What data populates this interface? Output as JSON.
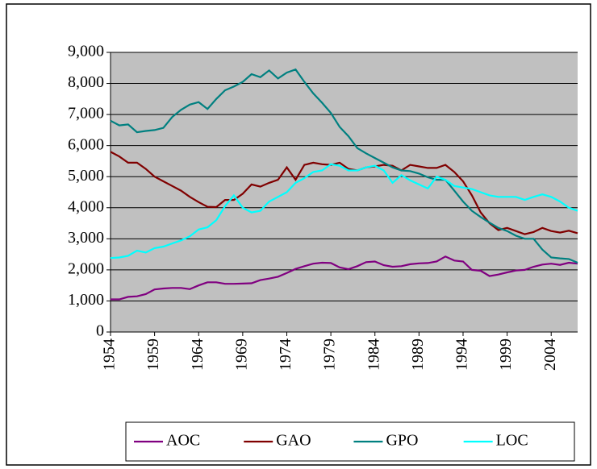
{
  "chart_data": {
    "type": "line",
    "categories": [
      "1954",
      null,
      null,
      null,
      null,
      "1959",
      null,
      null,
      null,
      null,
      "1964",
      null,
      null,
      null,
      null,
      "1969",
      null,
      null,
      null,
      null,
      "1974",
      null,
      null,
      null,
      null,
      "1979",
      null,
      null,
      null,
      null,
      "1984",
      null,
      null,
      null,
      null,
      "1989",
      null,
      null,
      null,
      null,
      "1994",
      null,
      null,
      null,
      null,
      "1999",
      null,
      null,
      null,
      null,
      "2004",
      null,
      null,
      null
    ],
    "series": [
      {
        "name": "AOC",
        "color": "#800080",
        "values": [
          1050,
          1050,
          1130,
          1150,
          1220,
          1370,
          1400,
          1420,
          1420,
          1380,
          1500,
          1600,
          1600,
          1550,
          1550,
          1560,
          1570,
          1670,
          1720,
          1780,
          1900,
          2030,
          2120,
          2200,
          2230,
          2220,
          2080,
          2020,
          2120,
          2250,
          2270,
          2150,
          2100,
          2120,
          2180,
          2210,
          2220,
          2270,
          2430,
          2300,
          2270,
          2000,
          1970,
          1800,
          1850,
          1920,
          1980,
          2000,
          2100,
          2170,
          2200,
          2160,
          2230,
          2200
        ]
      },
      {
        "name": "GAO",
        "color": "#800000",
        "values": [
          5800,
          5650,
          5450,
          5450,
          5250,
          5000,
          4850,
          4700,
          4550,
          4350,
          4180,
          4030,
          4020,
          4250,
          4250,
          4450,
          4750,
          4680,
          4800,
          4900,
          5300,
          4900,
          5380,
          5450,
          5400,
          5380,
          5450,
          5250,
          5200,
          5300,
          5330,
          5380,
          5350,
          5200,
          5380,
          5330,
          5280,
          5280,
          5380,
          5150,
          4850,
          4400,
          3850,
          3500,
          3280,
          3350,
          3250,
          3150,
          3220,
          3350,
          3250,
          3200,
          3260,
          3180
        ]
      },
      {
        "name": "GPO",
        "color": "#008080",
        "values": [
          6800,
          6650,
          6680,
          6430,
          6470,
          6500,
          6570,
          6920,
          7150,
          7320,
          7400,
          7180,
          7500,
          7780,
          7900,
          8050,
          8300,
          8200,
          8420,
          8160,
          8350,
          8450,
          8050,
          7680,
          7380,
          7050,
          6600,
          6300,
          5920,
          5750,
          5600,
          5450,
          5300,
          5200,
          5180,
          5100,
          4980,
          4900,
          4900,
          4550,
          4200,
          3900,
          3700,
          3520,
          3350,
          3250,
          3100,
          3000,
          3000,
          2650,
          2400,
          2370,
          2350,
          2230
        ]
      },
      {
        "name": "LOC",
        "color": "#00ffff",
        "values": [
          2380,
          2400,
          2450,
          2620,
          2560,
          2700,
          2750,
          2850,
          2950,
          3080,
          3300,
          3370,
          3600,
          4050,
          4400,
          4000,
          3850,
          3900,
          4200,
          4350,
          4500,
          4800,
          4950,
          5150,
          5200,
          5400,
          5350,
          5200,
          5200,
          5300,
          5350,
          5200,
          4800,
          5050,
          4880,
          4750,
          4620,
          5000,
          4900,
          4700,
          4650,
          4600,
          4500,
          4400,
          4350,
          4350,
          4350,
          4250,
          4350,
          4430,
          4350,
          4200,
          4000,
          3900
        ]
      }
    ],
    "ylim": [
      0,
      9000
    ],
    "yticks": [
      0,
      {
        "value": 1000,
        "label": "1,000"
      },
      {
        "value": 2000,
        "label": "2,000"
      },
      {
        "value": 3000,
        "label": "3,000"
      },
      {
        "value": 4000,
        "label": "4,000"
      },
      {
        "value": 5000,
        "label": "5,000"
      },
      {
        "value": 6000,
        "label": "6,000"
      },
      {
        "value": 7000,
        "label": "7,000"
      },
      {
        "value": 8000,
        "label": "8,000"
      },
      {
        "value": 9000,
        "label": "9,000"
      }
    ],
    "grid": true,
    "legend": "bottom",
    "plot_background": "#c0c0c0"
  }
}
